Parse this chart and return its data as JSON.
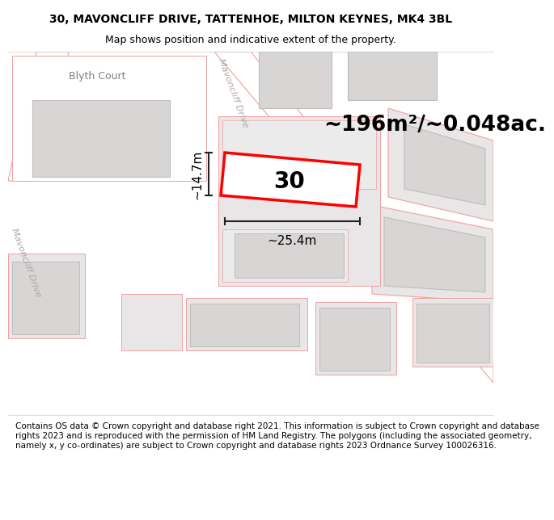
{
  "title_line1": "30, MAVONCLIFF DRIVE, TATTENHOE, MILTON KEYNES, MK4 3BL",
  "title_line2": "Map shows position and indicative extent of the property.",
  "footer_text": "Contains OS data © Crown copyright and database right 2021. This information is subject to Crown copyright and database rights 2023 and is reproduced with the permission of HM Land Registry. The polygons (including the associated geometry, namely x, y co-ordinates) are subject to Crown copyright and database rights 2023 Ordnance Survey 100026316.",
  "area_label": "~196m²/~0.048ac.",
  "width_label": "~25.4m",
  "height_label": "~14.7m",
  "number_label": "30",
  "map_bg": "#ffffff",
  "parcel_bg": "#e8e6e6",
  "road_line_color": "#f0a0a0",
  "parcel_edge_color": "#c8b8b8",
  "building_fill": "#d8d5d5",
  "building_edge": "#c0bcbc",
  "property_edge": "#ff0000",
  "dim_line_color": "#222222",
  "road_label_color": "#b0a8a8",
  "text_label_color": "#888080",
  "title_fontsize": 10,
  "subtitle_fontsize": 9,
  "footer_fontsize": 7.5,
  "area_fontsize": 19,
  "number_fontsize": 20,
  "dim_fontsize": 11,
  "road_label_fontsize": 8,
  "street_label_fontsize": 9
}
